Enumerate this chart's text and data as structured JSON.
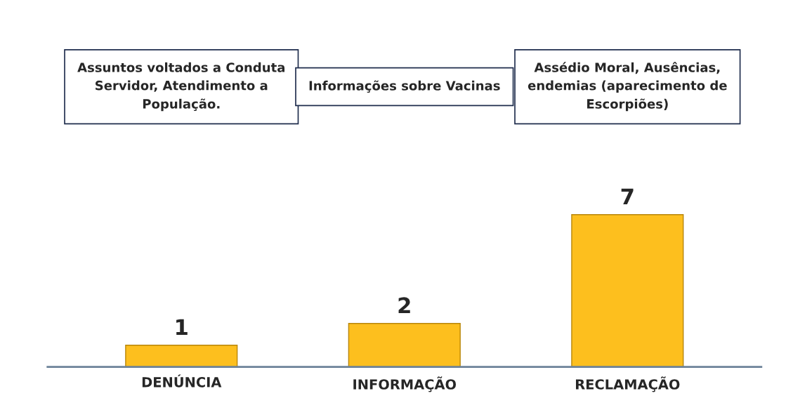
{
  "chart_data": {
    "type": "bar",
    "categories": [
      "DENÚNCIA",
      "INFORMAÇÃO",
      "RECLAMAÇÃO"
    ],
    "values": [
      1,
      2,
      7
    ],
    "color": "#fdbf1e",
    "data_labels": true,
    "tick_labels": "x",
    "grid": false,
    "annotations": [
      "Assuntos voltados a Conduta Servidor, Atendimento a População.",
      "Informações sobre Vacinas",
      "Assédio Moral, Ausências, endemias (aparecimento de Escorpiões)"
    ]
  }
}
